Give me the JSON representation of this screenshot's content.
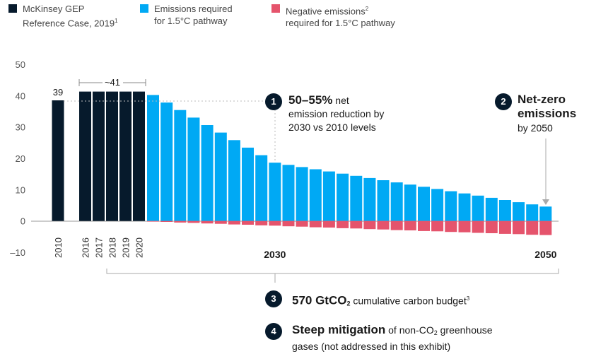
{
  "legend": [
    {
      "line1": "McKinsey GEP",
      "line2": "Reference Case, 2019",
      "sup": "1",
      "color": "#061a2c"
    },
    {
      "line1": "Emissions required",
      "line2": "for 1.5°C pathway",
      "sup": "",
      "color": "#00a9f4"
    },
    {
      "line1": "Negative emissions",
      "line1_sup": "2",
      "line2": "required for 1.5°C pathway",
      "sup": "",
      "color": "#e5546c"
    }
  ],
  "annotations": {
    "a1": {
      "num": "1",
      "bold": "50–55%",
      "rest1": " net",
      "rest2": "emission reduction by",
      "rest3": "2030 vs 2010 levels"
    },
    "a2": {
      "num": "2",
      "bold1": "Net-zero",
      "bold2": "emissions",
      "rest": "by 2050"
    },
    "a3": {
      "num": "3",
      "bold": "570 GtCO",
      "bold_sub": "2",
      "rest": " cumulative carbon budget",
      "rest_sup": "3"
    },
    "a4": {
      "num": "4",
      "bold": "Steep mitigation",
      "rest1": " of non-CO",
      "rest1_sub": "2",
      "rest1b": " greenhouse",
      "rest2": "gases (not addressed in this exhibit)"
    }
  },
  "chart_data": {
    "type": "bar",
    "title": "",
    "ylabel": "",
    "ylim": [
      -10,
      50
    ],
    "yticks": [
      50,
      40,
      30,
      20,
      10,
      0,
      -10
    ],
    "ytick_labels": [
      "50",
      "40",
      "30",
      "20",
      "10",
      "0",
      "–10"
    ],
    "reference_labels": {
      "bar_2010": "39",
      "bracket_2016_2020": "~41"
    },
    "x_tick_labels": [
      "2010",
      "2016",
      "2017",
      "2018",
      "2019",
      "2020",
      "2030",
      "2050"
    ],
    "series": [
      {
        "name": "McKinsey GEP Reference Case, 2019",
        "color": "#061a2c",
        "x": [
          2010,
          2016,
          2017,
          2018,
          2019,
          2020
        ],
        "values": [
          38.5,
          41.3,
          41.3,
          41.3,
          41.3,
          41.3
        ]
      },
      {
        "name": "Emissions required for 1.5°C pathway",
        "color": "#00a9f4",
        "x": [
          2021,
          2022,
          2023,
          2024,
          2025,
          2026,
          2027,
          2028,
          2029,
          2030,
          2031,
          2032,
          2033,
          2034,
          2035,
          2036,
          2037,
          2038,
          2039,
          2040,
          2041,
          2042,
          2043,
          2044,
          2045,
          2046,
          2047,
          2048,
          2049,
          2050
        ],
        "values": [
          40.2,
          37.8,
          35.4,
          33.0,
          30.6,
          28.2,
          25.8,
          23.4,
          21.0,
          18.6,
          17.9,
          17.2,
          16.5,
          15.8,
          15.1,
          14.4,
          13.7,
          13.0,
          12.3,
          11.6,
          10.9,
          10.2,
          9.5,
          8.8,
          8.1,
          7.4,
          6.7,
          6.0,
          5.3,
          4.6
        ]
      },
      {
        "name": "Negative emissions required for 1.5°C pathway",
        "color": "#e5546c",
        "x": [
          2021,
          2022,
          2023,
          2024,
          2025,
          2026,
          2027,
          2028,
          2029,
          2030,
          2031,
          2032,
          2033,
          2034,
          2035,
          2036,
          2037,
          2038,
          2039,
          2040,
          2041,
          2042,
          2043,
          2044,
          2045,
          2046,
          2047,
          2048,
          2049,
          2050
        ],
        "values": [
          -0.2,
          -0.3,
          -0.5,
          -0.6,
          -0.8,
          -0.9,
          -1.1,
          -1.2,
          -1.4,
          -1.5,
          -1.7,
          -1.8,
          -2.0,
          -2.1,
          -2.3,
          -2.4,
          -2.6,
          -2.7,
          -2.9,
          -3.0,
          -3.2,
          -3.3,
          -3.5,
          -3.6,
          -3.8,
          -3.9,
          -4.1,
          -4.2,
          -4.4,
          -4.5
        ]
      }
    ]
  }
}
